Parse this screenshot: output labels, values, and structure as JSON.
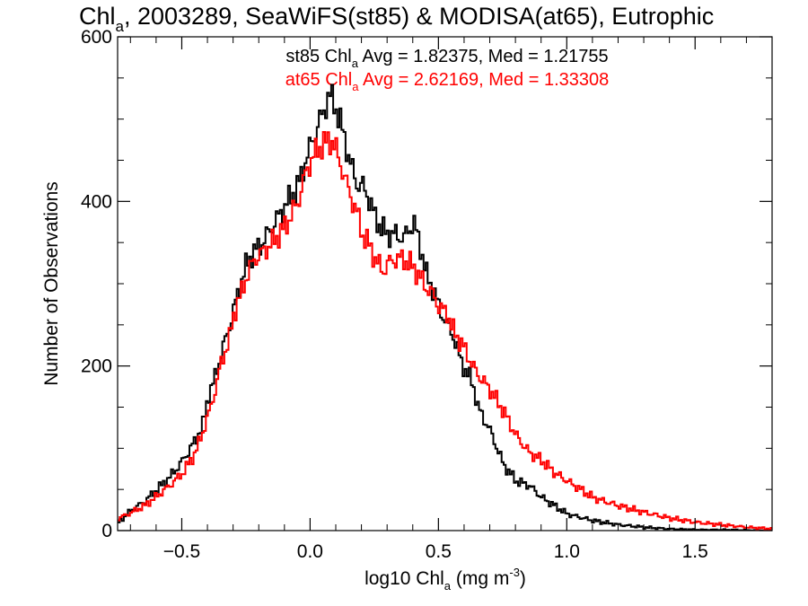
{
  "chart_data": {
    "type": "line",
    "title": {
      "base": "Chl",
      "sub": "a",
      "rest": ", 2003289, SeaWiFS(st85) & MODISA(at65), Eutrophic"
    },
    "xlabel": {
      "pre": "log10 Chl",
      "sub": "a",
      "mid": " (mg m",
      "sup": "-3",
      "post": ")"
    },
    "ylabel": "Number of Observations",
    "xlim": [
      -0.75,
      1.8
    ],
    "ylim": [
      0,
      600
    ],
    "xticks": [
      -0.5,
      0.0,
      0.5,
      1.0,
      1.5
    ],
    "xtick_labels": [
      "−0.5",
      "0.0",
      "0.5",
      "1.0",
      "1.5"
    ],
    "yticks": [
      0,
      200,
      400,
      600
    ],
    "ytick_labels": [
      "0",
      "200",
      "400",
      "600"
    ],
    "grid": false,
    "annotations": [
      {
        "pre": "st85 Chl",
        "sub": "a",
        "post": " Avg = 1.82375, Med = 1.21755",
        "color": "#000000"
      },
      {
        "pre": "at65 Chl",
        "sub": "a",
        "post": " Avg = 2.62169, Med = 1.33308",
        "color": "#ff0000"
      }
    ],
    "series": [
      {
        "color": "#000000",
        "points": [
          [
            -0.75,
            10
          ],
          [
            -0.7,
            25
          ],
          [
            -0.65,
            35
          ],
          [
            -0.6,
            50
          ],
          [
            -0.55,
            65
          ],
          [
            -0.5,
            85
          ],
          [
            -0.45,
            110
          ],
          [
            -0.42,
            130
          ],
          [
            -0.4,
            165
          ],
          [
            -0.38,
            180
          ],
          [
            -0.35,
            215
          ],
          [
            -0.33,
            235
          ],
          [
            -0.3,
            270
          ],
          [
            -0.28,
            295
          ],
          [
            -0.25,
            325
          ],
          [
            -0.22,
            340
          ],
          [
            -0.2,
            345
          ],
          [
            -0.15,
            370
          ],
          [
            -0.1,
            395
          ],
          [
            -0.05,
            420
          ],
          [
            0.0,
            470
          ],
          [
            0.03,
            495
          ],
          [
            0.05,
            510
          ],
          [
            0.07,
            530
          ],
          [
            0.09,
            520
          ],
          [
            0.12,
            490
          ],
          [
            0.15,
            450
          ],
          [
            0.18,
            420
          ],
          [
            0.2,
            420
          ],
          [
            0.23,
            400
          ],
          [
            0.25,
            380
          ],
          [
            0.28,
            365
          ],
          [
            0.3,
            360
          ],
          [
            0.33,
            360
          ],
          [
            0.36,
            355
          ],
          [
            0.4,
            375
          ],
          [
            0.43,
            340
          ],
          [
            0.45,
            310
          ],
          [
            0.48,
            290
          ],
          [
            0.5,
            270
          ],
          [
            0.53,
            250
          ],
          [
            0.55,
            240
          ],
          [
            0.58,
            210
          ],
          [
            0.6,
            195
          ],
          [
            0.63,
            180
          ],
          [
            0.65,
            150
          ],
          [
            0.7,
            120
          ],
          [
            0.75,
            80
          ],
          [
            0.8,
            60
          ],
          [
            0.85,
            55
          ],
          [
            0.9,
            40
          ],
          [
            0.95,
            30
          ],
          [
            1.0,
            20
          ],
          [
            1.1,
            12
          ],
          [
            1.2,
            7
          ],
          [
            1.3,
            4
          ],
          [
            1.4,
            2
          ],
          [
            1.5,
            1
          ],
          [
            1.6,
            1
          ],
          [
            1.8,
            0
          ]
        ]
      },
      {
        "color": "#ff0000",
        "points": [
          [
            -0.75,
            15
          ],
          [
            -0.7,
            22
          ],
          [
            -0.65,
            30
          ],
          [
            -0.6,
            42
          ],
          [
            -0.55,
            55
          ],
          [
            -0.5,
            70
          ],
          [
            -0.45,
            95
          ],
          [
            -0.4,
            140
          ],
          [
            -0.37,
            175
          ],
          [
            -0.35,
            205
          ],
          [
            -0.32,
            230
          ],
          [
            -0.3,
            265
          ],
          [
            -0.27,
            290
          ],
          [
            -0.25,
            310
          ],
          [
            -0.22,
            330
          ],
          [
            -0.2,
            335
          ],
          [
            -0.15,
            350
          ],
          [
            -0.1,
            370
          ],
          [
            -0.05,
            400
          ],
          [
            -0.02,
            435
          ],
          [
            0.0,
            450
          ],
          [
            0.03,
            465
          ],
          [
            0.05,
            470
          ],
          [
            0.08,
            475
          ],
          [
            0.1,
            460
          ],
          [
            0.12,
            440
          ],
          [
            0.15,
            410
          ],
          [
            0.18,
            385
          ],
          [
            0.2,
            360
          ],
          [
            0.23,
            345
          ],
          [
            0.25,
            330
          ],
          [
            0.28,
            315
          ],
          [
            0.3,
            325
          ],
          [
            0.33,
            330
          ],
          [
            0.36,
            330
          ],
          [
            0.4,
            320
          ],
          [
            0.43,
            305
          ],
          [
            0.45,
            295
          ],
          [
            0.48,
            285
          ],
          [
            0.5,
            270
          ],
          [
            0.53,
            265
          ],
          [
            0.55,
            245
          ],
          [
            0.58,
            230
          ],
          [
            0.6,
            220
          ],
          [
            0.63,
            200
          ],
          [
            0.65,
            190
          ],
          [
            0.7,
            170
          ],
          [
            0.75,
            145
          ],
          [
            0.8,
            115
          ],
          [
            0.85,
            95
          ],
          [
            0.9,
            85
          ],
          [
            0.95,
            70
          ],
          [
            1.0,
            60
          ],
          [
            1.05,
            50
          ],
          [
            1.1,
            40
          ],
          [
            1.2,
            30
          ],
          [
            1.3,
            22
          ],
          [
            1.4,
            15
          ],
          [
            1.5,
            10
          ],
          [
            1.6,
            7
          ],
          [
            1.7,
            4
          ],
          [
            1.8,
            2
          ]
        ]
      }
    ]
  }
}
